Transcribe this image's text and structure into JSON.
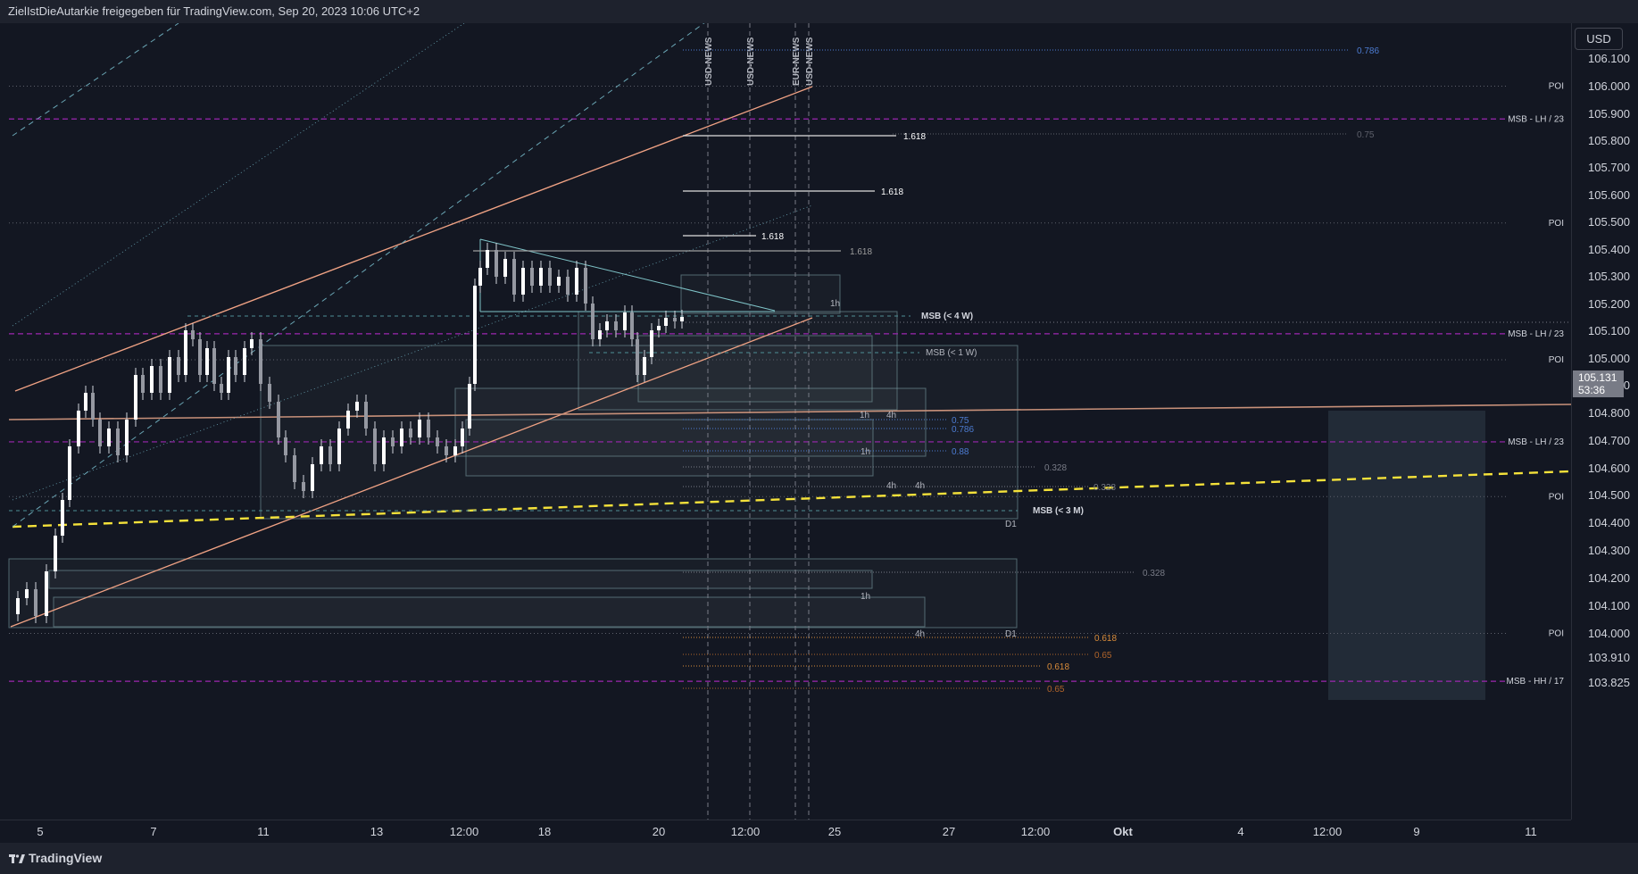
{
  "header": {
    "title": "ZielIstDieAutarkie freigegeben für TradingView.com, Sep 20, 2023 10:06 UTC+2"
  },
  "footer": {
    "brand": "TradingView"
  },
  "currency_button": "USD",
  "last_price": {
    "value": "105.131",
    "countdown": "53:36"
  },
  "chart_data": {
    "type": "candlestick",
    "title": "",
    "y_axis": {
      "ylim": [
        103.79,
        106.18
      ],
      "ticks": [
        "106.100",
        "106.000",
        "105.900",
        "105.800",
        "105.700",
        "105.600",
        "105.500",
        "105.400",
        "105.300",
        "105.200",
        "105.100",
        "105.000",
        "104.900",
        "104.800",
        "104.700",
        "104.600",
        "104.500",
        "104.400",
        "104.300",
        "104.200",
        "104.100",
        "104.000",
        "103.910",
        "103.825"
      ]
    },
    "x_axis": {
      "ticks": [
        "5",
        "7",
        "11",
        "13",
        "12:00",
        "18",
        "20",
        "12:00",
        "25",
        "27",
        "12:00",
        "Okt",
        "4",
        "12:00",
        "9",
        "11"
      ]
    },
    "news_markers": [
      "USD-NEWS",
      "USD-NEWS",
      "EUR-NEWS",
      "USD-NEWS"
    ],
    "horizontal_levels": [
      {
        "label": "POI",
        "price": 106.0
      },
      {
        "label": "MSB - LH / 23",
        "price": 105.88
      },
      {
        "label": "POI",
        "price": 105.5
      },
      {
        "label": "MSB - LH / 23",
        "price": 105.095
      },
      {
        "label": "POI",
        "price": 105.0
      },
      {
        "label": "MSB - LH / 23",
        "price": 104.7
      },
      {
        "label": "POI",
        "price": 104.5
      },
      {
        "label": "POI",
        "price": 104.0
      },
      {
        "label": "MSB - HH / 17",
        "price": 103.825
      }
    ],
    "fib_labels": [
      {
        "label": "0.786",
        "price": 106.13
      },
      {
        "label": "0.75",
        "price": 105.82
      },
      {
        "label": "1.618",
        "price": 105.82
      },
      {
        "label": "1.618",
        "price": 105.615
      },
      {
        "label": "1.618",
        "price": 105.45
      },
      {
        "label": "1.618",
        "price": 105.395
      },
      {
        "label": "0.75",
        "price": 104.785
      },
      {
        "label": "0.786",
        "price": 104.75
      },
      {
        "label": "0.88",
        "price": 104.665
      },
      {
        "label": "0.328",
        "price": 104.61
      },
      {
        "label": "0.328",
        "price": 104.535
      },
      {
        "label": "0.328",
        "price": 104.23
      },
      {
        "label": "0.618",
        "price": 103.99
      },
      {
        "label": "0.65",
        "price": 103.91
      },
      {
        "label": "0.618",
        "price": 103.865
      },
      {
        "label": "0.65",
        "price": 103.805
      }
    ],
    "msb_labels": [
      "MSB (< 4 W)",
      "MSB (< 1 W)",
      "MSB (< 3 M)"
    ],
    "zone_labels": [
      "1h",
      "1h",
      "4h",
      "1h",
      "4h",
      "4h",
      "D1",
      "1h",
      "4h",
      "D1"
    ]
  }
}
